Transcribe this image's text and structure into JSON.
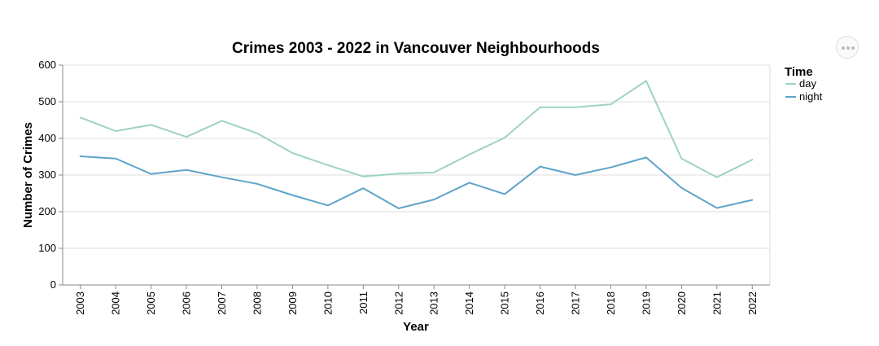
{
  "chart_data": {
    "type": "line",
    "title": "Crimes 2003 - 2022 in Vancouver Neighbourhoods",
    "xlabel": "Year",
    "ylabel": "Number of Crimes",
    "x": [
      "2003",
      "2004",
      "2005",
      "2006",
      "2007",
      "2008",
      "2009",
      "2010",
      "2011",
      "2012",
      "2013",
      "2014",
      "2015",
      "2016",
      "2017",
      "2018",
      "2019",
      "2020",
      "2021",
      "2022"
    ],
    "ylim": [
      0,
      600
    ],
    "yticks": [
      0,
      100,
      200,
      300,
      400,
      500,
      600
    ],
    "grid": true,
    "legend": {
      "title": "Time",
      "position": "right"
    },
    "series": [
      {
        "name": "day",
        "color": "#9ed2c2",
        "values": [
          457,
          420,
          437,
          404,
          448,
          414,
          360,
          327,
          296,
          304,
          307,
          356,
          402,
          485,
          485,
          493,
          557,
          345,
          294,
          342
        ]
      },
      {
        "name": "night",
        "color": "#5ea3c9",
        "values": [
          351,
          345,
          303,
          314,
          294,
          276,
          245,
          217,
          264,
          209,
          233,
          279,
          248,
          323,
          300,
          321,
          348,
          265,
          210,
          232
        ]
      }
    ]
  },
  "menu": {
    "icon": "more-horizontal-icon"
  }
}
